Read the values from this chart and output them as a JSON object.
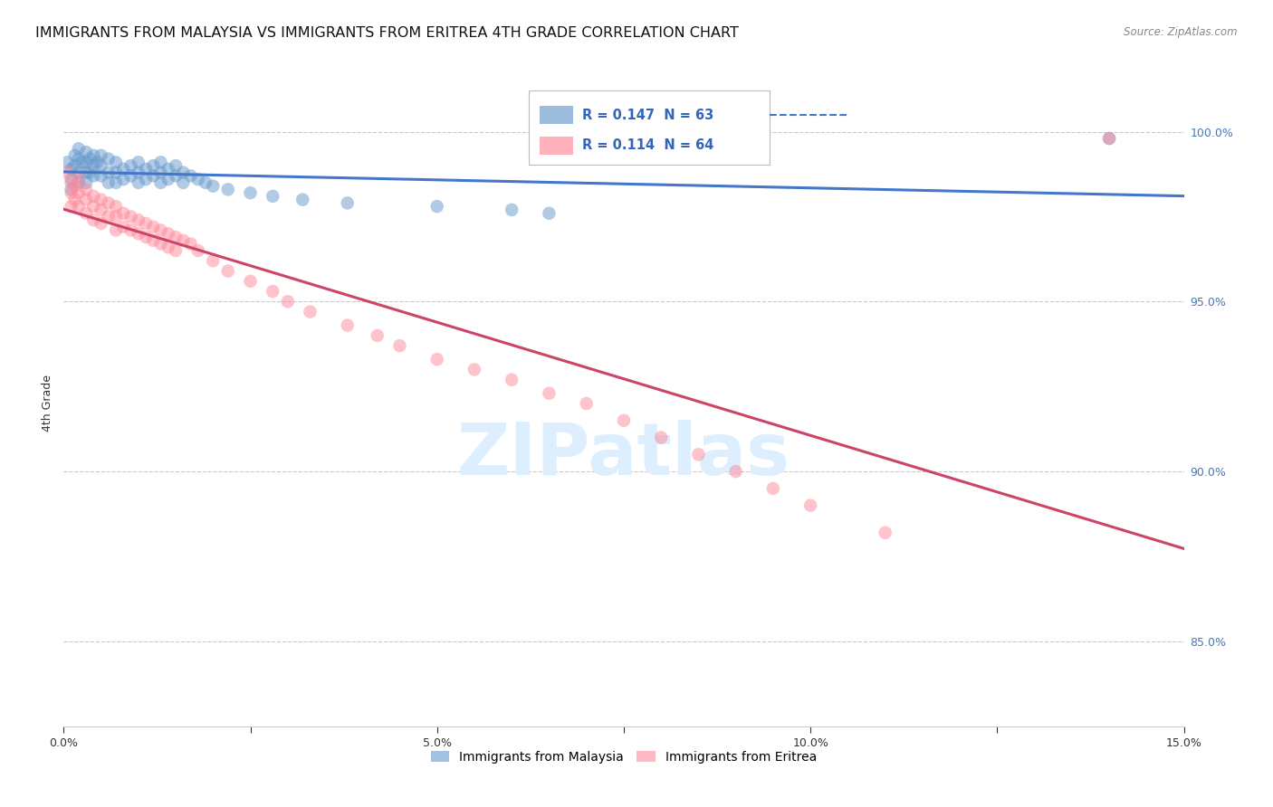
{
  "title": "IMMIGRANTS FROM MALAYSIA VS IMMIGRANTS FROM ERITREA 4TH GRADE CORRELATION CHART",
  "source": "Source: ZipAtlas.com",
  "ylabel": "4th Grade",
  "xlim": [
    0.0,
    0.15
  ],
  "ylim": [
    0.825,
    1.015
  ],
  "xticks": [
    0.0,
    0.025,
    0.05,
    0.075,
    0.1,
    0.125,
    0.15
  ],
  "xticklabels": [
    "0.0%",
    "",
    "5.0%",
    "",
    "10.0%",
    "",
    "15.0%"
  ],
  "yticks_right": [
    1.0,
    0.95,
    0.9,
    0.85
  ],
  "yticklabels_right": [
    "100.0%",
    "95.0%",
    "90.0%",
    "85.0%"
  ],
  "malaysia_color": "#6699CC",
  "eritrea_color": "#FF8899",
  "malaysia_R": 0.147,
  "malaysia_N": 63,
  "eritrea_R": 0.114,
  "eritrea_N": 64,
  "legend_label_malaysia": "Immigrants from Malaysia",
  "legend_label_eritrea": "Immigrants from Eritrea",
  "malaysia_x": [
    0.0005,
    0.001,
    0.001,
    0.001,
    0.0015,
    0.0015,
    0.002,
    0.002,
    0.002,
    0.002,
    0.0025,
    0.003,
    0.003,
    0.003,
    0.003,
    0.0035,
    0.0035,
    0.004,
    0.004,
    0.004,
    0.0045,
    0.005,
    0.005,
    0.005,
    0.006,
    0.006,
    0.006,
    0.007,
    0.007,
    0.007,
    0.008,
    0.008,
    0.009,
    0.009,
    0.01,
    0.01,
    0.01,
    0.011,
    0.011,
    0.012,
    0.012,
    0.013,
    0.013,
    0.013,
    0.014,
    0.014,
    0.015,
    0.015,
    0.016,
    0.016,
    0.017,
    0.018,
    0.019,
    0.02,
    0.022,
    0.025,
    0.028,
    0.032,
    0.038,
    0.05,
    0.06,
    0.065,
    0.14
  ],
  "malaysia_y": [
    0.991,
    0.989,
    0.986,
    0.983,
    0.993,
    0.99,
    0.995,
    0.992,
    0.988,
    0.985,
    0.991,
    0.994,
    0.991,
    0.988,
    0.985,
    0.992,
    0.988,
    0.993,
    0.99,
    0.987,
    0.991,
    0.993,
    0.99,
    0.987,
    0.992,
    0.988,
    0.985,
    0.991,
    0.988,
    0.985,
    0.989,
    0.986,
    0.99,
    0.987,
    0.991,
    0.988,
    0.985,
    0.989,
    0.986,
    0.99,
    0.987,
    0.991,
    0.988,
    0.985,
    0.989,
    0.986,
    0.99,
    0.987,
    0.988,
    0.985,
    0.987,
    0.986,
    0.985,
    0.984,
    0.983,
    0.982,
    0.981,
    0.98,
    0.979,
    0.978,
    0.977,
    0.976,
    0.998
  ],
  "eritrea_x": [
    0.0005,
    0.001,
    0.001,
    0.001,
    0.0015,
    0.0015,
    0.002,
    0.002,
    0.002,
    0.003,
    0.003,
    0.003,
    0.004,
    0.004,
    0.004,
    0.005,
    0.005,
    0.005,
    0.006,
    0.006,
    0.007,
    0.007,
    0.007,
    0.008,
    0.008,
    0.009,
    0.009,
    0.01,
    0.01,
    0.011,
    0.011,
    0.012,
    0.012,
    0.013,
    0.013,
    0.014,
    0.014,
    0.015,
    0.015,
    0.016,
    0.017,
    0.018,
    0.02,
    0.022,
    0.025,
    0.028,
    0.03,
    0.033,
    0.038,
    0.042,
    0.045,
    0.05,
    0.055,
    0.06,
    0.065,
    0.07,
    0.075,
    0.08,
    0.085,
    0.09,
    0.095,
    0.1,
    0.11,
    0.14
  ],
  "eritrea_y": [
    0.988,
    0.985,
    0.982,
    0.978,
    0.984,
    0.98,
    0.986,
    0.982,
    0.978,
    0.983,
    0.98,
    0.976,
    0.981,
    0.978,
    0.974,
    0.98,
    0.977,
    0.973,
    0.979,
    0.975,
    0.978,
    0.975,
    0.971,
    0.976,
    0.972,
    0.975,
    0.971,
    0.974,
    0.97,
    0.973,
    0.969,
    0.972,
    0.968,
    0.971,
    0.967,
    0.97,
    0.966,
    0.969,
    0.965,
    0.968,
    0.967,
    0.965,
    0.962,
    0.959,
    0.956,
    0.953,
    0.95,
    0.947,
    0.943,
    0.94,
    0.937,
    0.933,
    0.93,
    0.927,
    0.923,
    0.92,
    0.915,
    0.91,
    0.905,
    0.9,
    0.895,
    0.89,
    0.882,
    0.998
  ],
  "background_color": "#ffffff",
  "grid_color": "#bbbbbb",
  "title_fontsize": 11.5,
  "axis_label_fontsize": 9,
  "tick_fontsize": 9,
  "watermark_text": "ZIPatlas",
  "watermark_color": "#ddeeff",
  "trend_blue": "#4477CC",
  "trend_pink": "#CC4466"
}
